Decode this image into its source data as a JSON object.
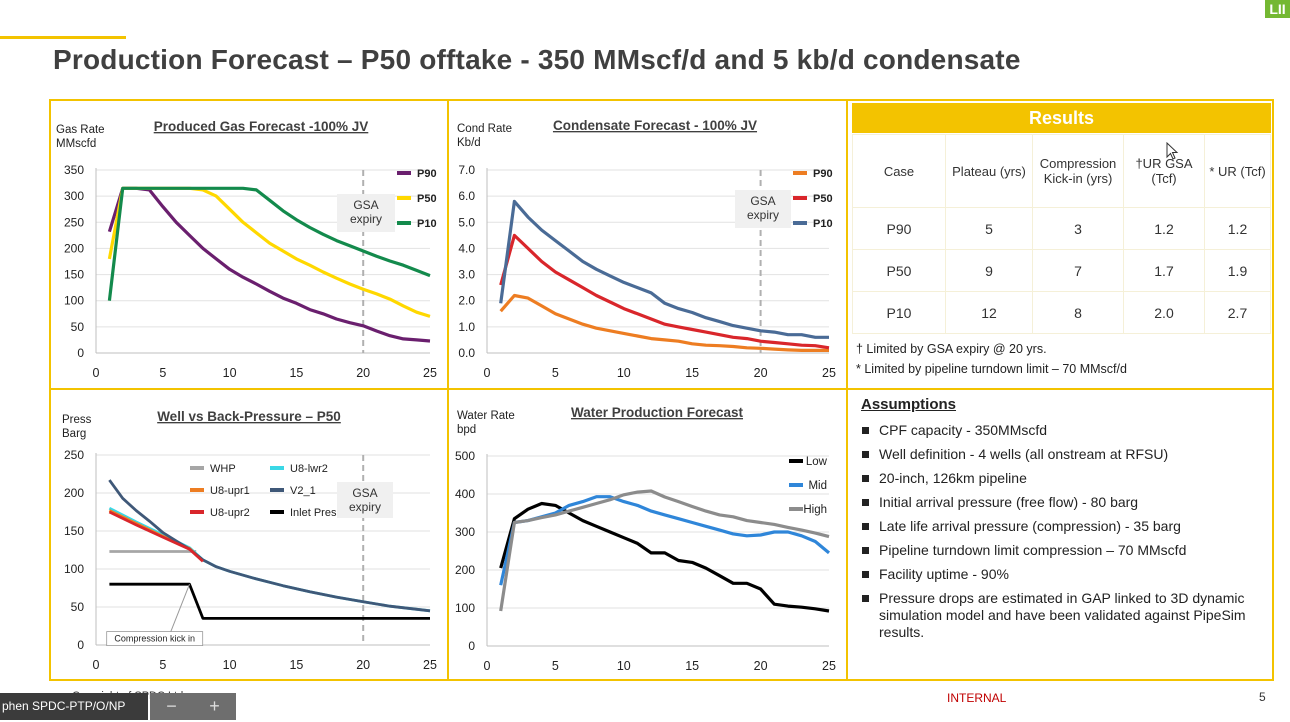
{
  "slide": {
    "title": "Production Forecast – P50 offtake - 350 MMscf/d and 5 kb/d condensate",
    "logo": "LII",
    "footer": {
      "copyright": "Copyright of SPDC Ltd.",
      "classification": "INTERNAL",
      "page": "5"
    },
    "taskbar": {
      "user": "phen SPDC-PTP/O/NP",
      "zoom_out": "−",
      "zoom_in": "+"
    }
  },
  "colors": {
    "accent": "#f3c300",
    "p90": "#6a1f6e",
    "p50": "#ffd800",
    "p10": "#138a4c",
    "internal": "#c00000"
  },
  "gsa_label": {
    "line1": "GSA",
    "line2": "expiry"
  },
  "chart_data": [
    {
      "id": "gas",
      "type": "line",
      "title": "Produced Gas Forecast -100% JV",
      "ylabel_line1": "Gas Rate",
      "ylabel_line2": "MMscfd",
      "xlim": [
        0,
        25
      ],
      "ylim": [
        0,
        350
      ],
      "xticks": [
        "0",
        "5",
        "10",
        "15",
        "20",
        "25"
      ],
      "yticks": [
        "0",
        "50",
        "100",
        "150",
        "200",
        "250",
        "300",
        "350"
      ],
      "vline_x": 20,
      "series": [
        {
          "name": "P90",
          "color": "#6a1f6e",
          "x": [
            1,
            2,
            3,
            4,
            5,
            6,
            7,
            8,
            9,
            10,
            11,
            12,
            13,
            14,
            15,
            16,
            17,
            18,
            19,
            20,
            21,
            22,
            23,
            24,
            25
          ],
          "y": [
            232,
            315,
            315,
            312,
            280,
            250,
            225,
            200,
            180,
            160,
            145,
            132,
            118,
            105,
            95,
            83,
            75,
            65,
            58,
            52,
            42,
            33,
            27,
            25,
            23
          ]
        },
        {
          "name": "P50",
          "color": "#ffd800",
          "x": [
            1,
            2,
            3,
            4,
            5,
            6,
            7,
            8,
            9,
            10,
            11,
            12,
            13,
            14,
            15,
            16,
            17,
            18,
            19,
            20,
            21,
            22,
            23,
            24,
            25
          ],
          "y": [
            180,
            315,
            315,
            315,
            315,
            315,
            315,
            312,
            300,
            275,
            250,
            230,
            210,
            195,
            180,
            168,
            155,
            143,
            132,
            122,
            113,
            103,
            90,
            78,
            70
          ]
        },
        {
          "name": "P10",
          "color": "#138a4c",
          "x": [
            1,
            2,
            3,
            4,
            5,
            6,
            7,
            8,
            9,
            10,
            11,
            12,
            13,
            14,
            15,
            16,
            17,
            18,
            19,
            20,
            21,
            22,
            23,
            24,
            25
          ],
          "y": [
            100,
            315,
            315,
            315,
            315,
            315,
            315,
            315,
            315,
            315,
            315,
            312,
            292,
            272,
            255,
            240,
            227,
            215,
            205,
            195,
            185,
            176,
            168,
            158,
            148
          ]
        }
      ]
    },
    {
      "id": "cond",
      "type": "line",
      "title": "Condensate Forecast - 100% JV",
      "ylabel_line1": "Cond Rate",
      "ylabel_line2": "Kb/d",
      "xlim": [
        0,
        25
      ],
      "ylim": [
        0,
        7
      ],
      "xticks": [
        "0",
        "5",
        "10",
        "15",
        "20",
        "25"
      ],
      "yticks": [
        "0.0",
        "1.0",
        "2.0",
        "3.0",
        "4.0",
        "5.0",
        "6.0",
        "7.0"
      ],
      "vline_x": 20,
      "series": [
        {
          "name": "P90",
          "color": "#ed7d22",
          "x": [
            1,
            2,
            3,
            4,
            5,
            6,
            7,
            8,
            9,
            10,
            11,
            12,
            13,
            14,
            15,
            16,
            17,
            18,
            19,
            20,
            21,
            22,
            23,
            24,
            25
          ],
          "y": [
            1.6,
            2.2,
            2.1,
            1.8,
            1.5,
            1.3,
            1.1,
            0.95,
            0.85,
            0.75,
            0.65,
            0.55,
            0.5,
            0.45,
            0.35,
            0.3,
            0.28,
            0.25,
            0.2,
            0.18,
            0.15,
            0.12,
            0.1,
            0.1,
            0.1
          ]
        },
        {
          "name": "P50",
          "color": "#d9262b",
          "x": [
            1,
            2,
            3,
            4,
            5,
            6,
            7,
            8,
            9,
            10,
            11,
            12,
            13,
            14,
            15,
            16,
            17,
            18,
            19,
            20,
            21,
            22,
            23,
            24,
            25
          ],
          "y": [
            2.6,
            4.5,
            4.0,
            3.5,
            3.1,
            2.8,
            2.5,
            2.2,
            1.95,
            1.7,
            1.5,
            1.3,
            1.1,
            1.0,
            0.9,
            0.8,
            0.7,
            0.6,
            0.55,
            0.45,
            0.4,
            0.35,
            0.3,
            0.28,
            0.2
          ]
        },
        {
          "name": "P10",
          "color": "#4a6b96",
          "x": [
            1,
            2,
            3,
            4,
            5,
            6,
            7,
            8,
            9,
            10,
            11,
            12,
            13,
            14,
            15,
            16,
            17,
            18,
            19,
            20,
            21,
            22,
            23,
            24,
            25
          ],
          "y": [
            1.9,
            5.8,
            5.2,
            4.7,
            4.3,
            3.9,
            3.5,
            3.2,
            2.95,
            2.7,
            2.5,
            2.3,
            1.9,
            1.7,
            1.55,
            1.35,
            1.2,
            1.05,
            0.95,
            0.85,
            0.8,
            0.7,
            0.7,
            0.6,
            0.6
          ]
        }
      ]
    },
    {
      "id": "press",
      "type": "line",
      "title": "Well vs Back-Pressure – P50",
      "ylabel_line1": "Press",
      "ylabel_line2": "Barg",
      "xlim": [
        0,
        25
      ],
      "ylim": [
        0,
        250
      ],
      "xticks": [
        "0",
        "5",
        "10",
        "15",
        "20",
        "25"
      ],
      "yticks": [
        "0",
        "50",
        "100",
        "150",
        "200",
        "250"
      ],
      "vline_x": 20,
      "annotation": "Compression kick in",
      "series": [
        {
          "name": "WHP",
          "color": "#a6a6a6",
          "x": [
            1,
            7.5
          ],
          "y": [
            123,
            123
          ]
        },
        {
          "name": "U8-lwr2",
          "color": "#3ad8e6",
          "x": [
            1,
            3,
            5,
            7,
            8,
            9,
            10,
            12,
            14,
            16,
            18,
            20,
            22,
            25
          ],
          "y": [
            180,
            162,
            145,
            128,
            112,
            103,
            97,
            87,
            78,
            70,
            63,
            57,
            51,
            45
          ]
        },
        {
          "name": "U8-upr1",
          "color": "#ed7d22",
          "x": [
            1,
            3,
            5,
            7,
            8
          ],
          "y": [
            177,
            160,
            143,
            127,
            111
          ]
        },
        {
          "name": "V2_1",
          "color": "#3f5878",
          "x": [
            1,
            2,
            3,
            4,
            5,
            6,
            7,
            8,
            9,
            10,
            12,
            14,
            16,
            18,
            20,
            22,
            25
          ],
          "y": [
            217,
            193,
            177,
            163,
            148,
            137,
            126,
            112,
            103,
            97,
            87,
            78,
            70,
            63,
            57,
            51,
            45
          ]
        },
        {
          "name": "U8-upr2",
          "color": "#d9262b",
          "x": [
            1,
            3,
            5,
            7,
            8
          ],
          "y": [
            175,
            158,
            142,
            126,
            110
          ]
        },
        {
          "name": "Inlet Pres",
          "color": "#000000",
          "x": [
            1,
            2,
            3,
            4,
            5,
            6,
            7,
            8,
            9,
            10,
            15,
            20,
            25
          ],
          "y": [
            80,
            80,
            80,
            80,
            80,
            80,
            80,
            35,
            35,
            35,
            35,
            35,
            35
          ]
        }
      ]
    },
    {
      "id": "water",
      "type": "line",
      "title": "Water Production Forecast",
      "ylabel_line1": "Water Rate",
      "ylabel_line2": "bpd",
      "xlim": [
        0,
        25
      ],
      "ylim": [
        0,
        500
      ],
      "xticks": [
        "0",
        "5",
        "10",
        "15",
        "20",
        "25"
      ],
      "yticks": [
        "0",
        "100",
        "200",
        "300",
        "400",
        "500"
      ],
      "series": [
        {
          "name": "Low",
          "color": "#000000",
          "x": [
            1,
            2,
            3,
            4,
            5,
            6,
            7,
            8,
            9,
            10,
            11,
            12,
            13,
            14,
            15,
            16,
            17,
            18,
            19,
            20,
            21,
            22,
            23,
            24,
            25
          ],
          "y": [
            205,
            335,
            360,
            375,
            370,
            350,
            330,
            315,
            300,
            285,
            270,
            245,
            245,
            225,
            220,
            205,
            185,
            165,
            165,
            150,
            110,
            105,
            102,
            98,
            92
          ]
        },
        {
          "name": "Mid",
          "color": "#2f86d9",
          "x": [
            1,
            2,
            3,
            4,
            5,
            6,
            7,
            8,
            9,
            10,
            11,
            12,
            13,
            14,
            15,
            16,
            17,
            18,
            19,
            20,
            21,
            22,
            23,
            24,
            25
          ],
          "y": [
            160,
            325,
            330,
            340,
            350,
            370,
            380,
            393,
            393,
            380,
            370,
            355,
            345,
            335,
            325,
            315,
            305,
            295,
            290,
            292,
            300,
            300,
            290,
            275,
            245
          ]
        },
        {
          "name": "High",
          "color": "#8c8c8c",
          "x": [
            1,
            2,
            3,
            4,
            5,
            6,
            7,
            8,
            9,
            10,
            11,
            12,
            13,
            14,
            15,
            16,
            17,
            18,
            19,
            20,
            21,
            22,
            23,
            24,
            25
          ],
          "y": [
            92,
            325,
            330,
            338,
            345,
            355,
            365,
            375,
            385,
            398,
            405,
            408,
            392,
            380,
            367,
            355,
            345,
            340,
            330,
            325,
            320,
            312,
            305,
            297,
            288
          ]
        }
      ]
    }
  ],
  "results": {
    "header": "Results",
    "columns": [
      "Case",
      "Plateau (yrs)",
      "Compression Kick-in (yrs)",
      "†UR GSA (Tcf)",
      "* UR (Tcf)"
    ],
    "rows": [
      [
        "P90",
        "5",
        "3",
        "1.2",
        "1.2"
      ],
      [
        "P50",
        "9",
        "7",
        "1.7",
        "1.9"
      ],
      [
        "P10",
        "12",
        "8",
        "2.0",
        "2.7"
      ]
    ],
    "notes": [
      "† Limited by GSA expiry @ 20 yrs.",
      "* Limited by pipeline turndown limit – 70 MMscf/d"
    ]
  },
  "assumptions": {
    "title": "Assumptions",
    "items": [
      "CPF capacity - 350MMscfd",
      "Well definition - 4 wells (all onstream at RFSU)",
      "20-inch, 126km pipeline",
      "Initial arrival pressure (free flow) - 80 barg",
      "Late life arrival pressure (compression) - 35 barg",
      "Pipeline turndown limit compression – 70 MMscfd",
      "Facility uptime - 90%",
      "Pressure drops are estimated in GAP linked to 3D dynamic simulation model and have been validated against PipeSim results."
    ]
  }
}
